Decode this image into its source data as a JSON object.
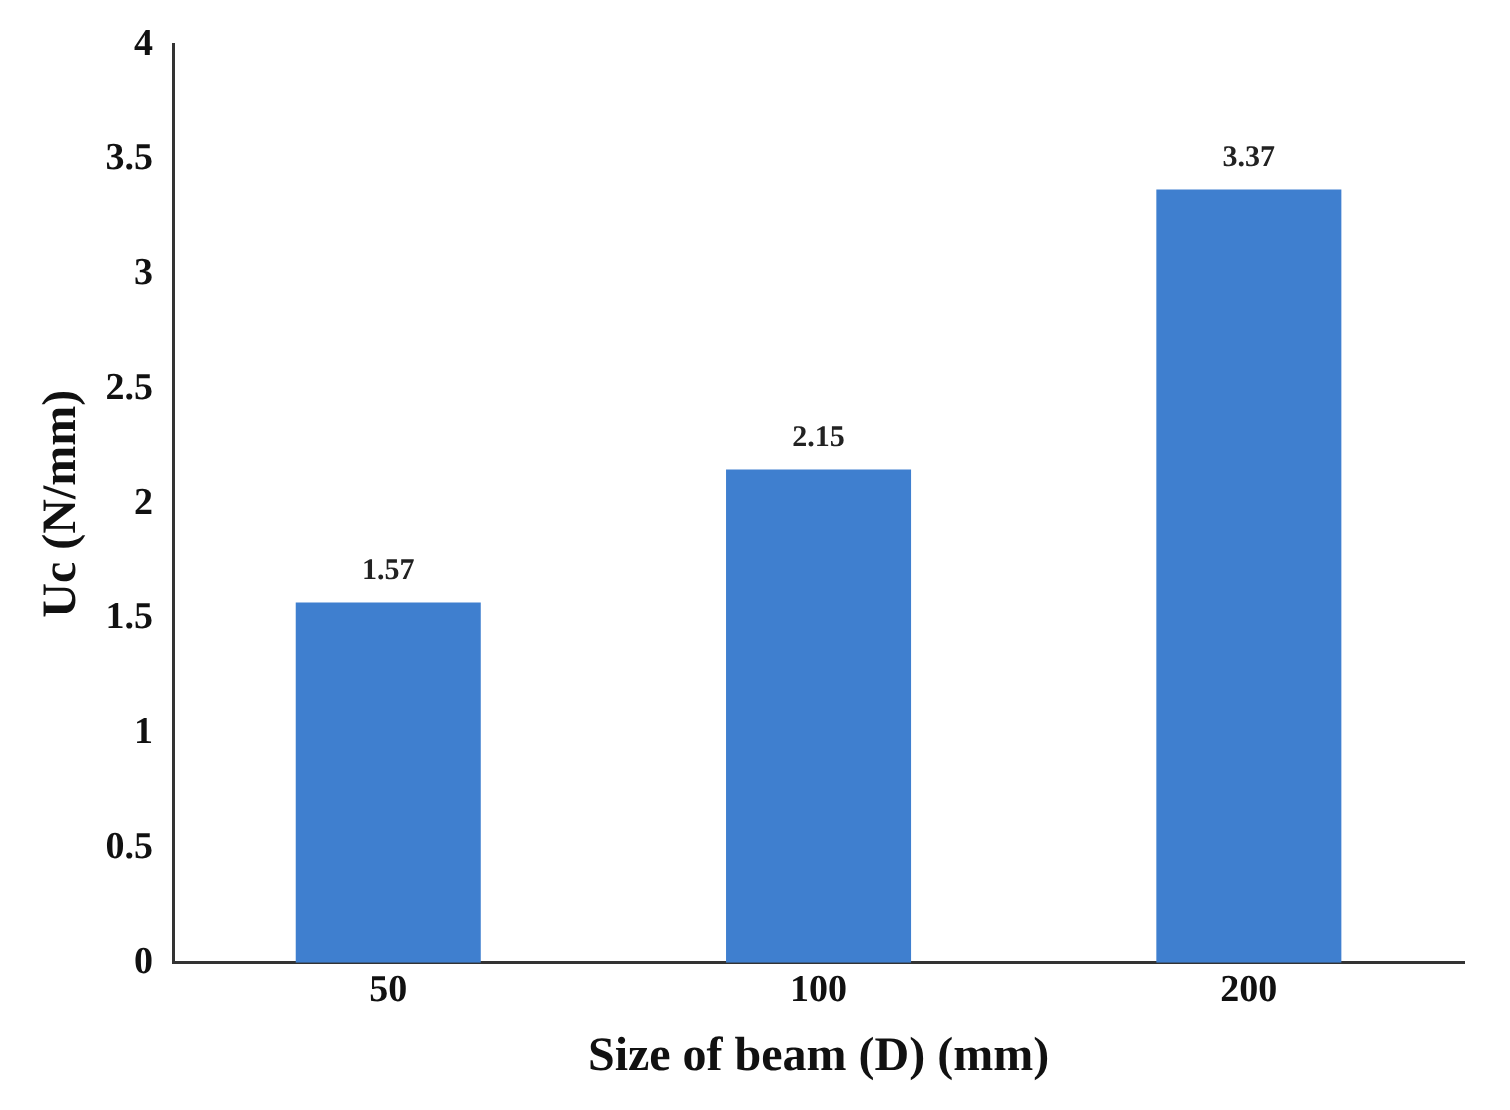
{
  "chart_data": {
    "type": "bar",
    "xlabel": "Size of beam (D) (mm)",
    "ylabel": "Uc (N/mm)",
    "categories": [
      "50",
      "100",
      "200"
    ],
    "values": [
      1.57,
      2.15,
      3.37
    ],
    "color": "#3f7fcf",
    "ylim": [
      0,
      4
    ],
    "yticks": [
      0,
      0.5,
      1,
      1.5,
      2,
      2.5,
      3,
      3.5,
      4
    ],
    "data_labels": true,
    "grid": false,
    "legend": false
  }
}
